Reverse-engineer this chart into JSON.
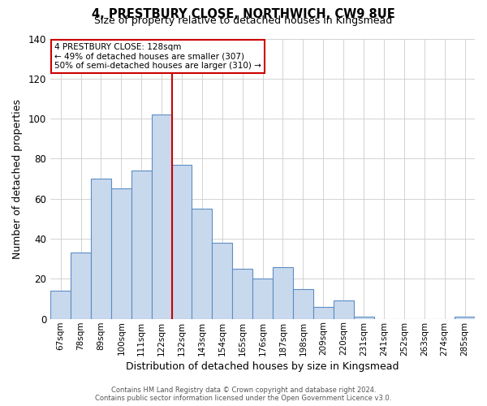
{
  "title": "4, PRESTBURY CLOSE, NORTHWICH, CW9 8UE",
  "subtitle": "Size of property relative to detached houses in Kingsmead",
  "xlabel": "Distribution of detached houses by size in Kingsmead",
  "ylabel": "Number of detached properties",
  "bar_labels": [
    "67sqm",
    "78sqm",
    "89sqm",
    "100sqm",
    "111sqm",
    "122sqm",
    "132sqm",
    "143sqm",
    "154sqm",
    "165sqm",
    "176sqm",
    "187sqm",
    "198sqm",
    "209sqm",
    "220sqm",
    "231sqm",
    "241sqm",
    "252sqm",
    "263sqm",
    "274sqm",
    "285sqm"
  ],
  "bar_values": [
    14,
    33,
    70,
    65,
    74,
    102,
    77,
    55,
    38,
    25,
    20,
    26,
    15,
    6,
    9,
    1,
    0,
    0,
    0,
    0,
    1
  ],
  "bar_color": "#c9d9ed",
  "bar_edge_color": "#5b8ec4",
  "vline_x": 5.5,
  "vline_color": "#cc0000",
  "ylim": [
    0,
    140
  ],
  "yticks": [
    0,
    20,
    40,
    60,
    80,
    100,
    120,
    140
  ],
  "annotation_line1": "4 PRESTBURY CLOSE: 128sqm",
  "annotation_line2": "← 49% of detached houses are smaller (307)",
  "annotation_line3": "50% of semi-detached houses are larger (310) →",
  "footer1": "Contains HM Land Registry data © Crown copyright and database right 2024.",
  "footer2": "Contains public sector information licensed under the Open Government Licence v3.0."
}
